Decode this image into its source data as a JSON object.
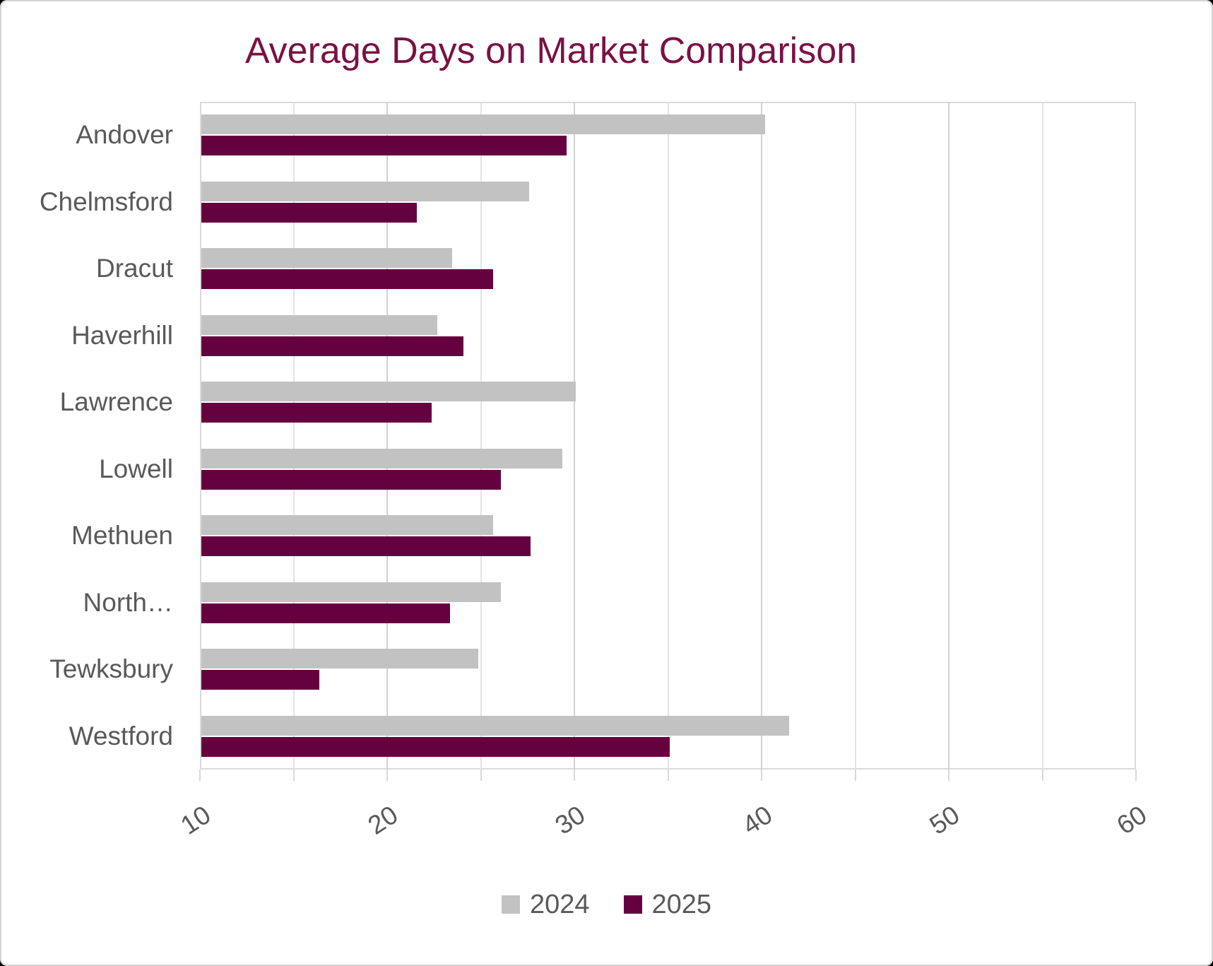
{
  "title": "Average Days on Market Comparison",
  "title_color": "#7a1143",
  "chart_data": {
    "type": "bar",
    "orientation": "horizontal",
    "title": "Average Days on Market Comparison",
    "categories": [
      "Andover",
      "Chelmsford",
      "Dracut",
      "Haverhill",
      "Lawrence",
      "Lowell",
      "Methuen",
      "North…",
      "Tewksbury",
      "Westford"
    ],
    "series": [
      {
        "name": "2024",
        "color": "#c3c2c2",
        "values": [
          40.1,
          27.5,
          23.4,
          22.6,
          30.0,
          29.3,
          25.6,
          26.0,
          24.8,
          41.4
        ]
      },
      {
        "name": "2025",
        "color": "#660140",
        "values": [
          29.5,
          21.5,
          25.6,
          24.0,
          22.3,
          26.0,
          27.6,
          23.3,
          16.3,
          35.0
        ]
      }
    ],
    "xlabel": "",
    "ylabel": "",
    "x_axis": {
      "min": 10,
      "max": 60,
      "major_unit": 10,
      "minor_unit": 5,
      "tick_labels": [
        "10",
        "20",
        "30",
        "40",
        "50",
        "60"
      ]
    },
    "grid": true,
    "legend_position": "bottom"
  },
  "legend": {
    "items": [
      {
        "label": "2024",
        "color": "#c3c2c2"
      },
      {
        "label": "2025",
        "color": "#660140"
      }
    ]
  }
}
